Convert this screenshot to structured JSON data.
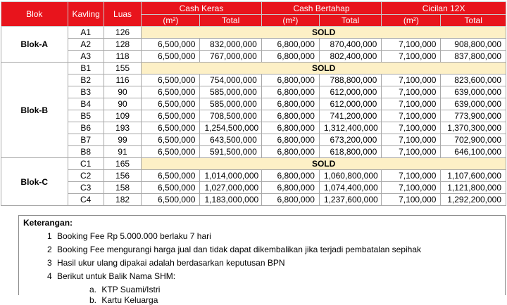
{
  "header": {
    "blok": "Blok",
    "kavling": "Kavling",
    "luas": "Luas",
    "groups": [
      "Cash Keras",
      "Cash Bertahap",
      "Cicilan 12X"
    ],
    "unit": "(m²)",
    "total": "Total"
  },
  "sold_label": "SOLD",
  "blocks": [
    {
      "name": "Blok-A",
      "rows": [
        {
          "kavling": "A1",
          "luas": "126",
          "sold": true
        },
        {
          "kavling": "A2",
          "luas": "128",
          "ck": "6,500,000",
          "ckt": "832,000,000",
          "cb": "6,800,000",
          "cbt": "870,400,000",
          "cc": "7,100,000",
          "cct": "908,800,000"
        },
        {
          "kavling": "A3",
          "luas": "118",
          "ck": "6,500,000",
          "ckt": "767,000,000",
          "cb": "6,800,000",
          "cbt": "802,400,000",
          "cc": "7,100,000",
          "cct": "837,800,000"
        }
      ]
    },
    {
      "name": "Blok-B",
      "rows": [
        {
          "kavling": "B1",
          "luas": "155",
          "sold": true
        },
        {
          "kavling": "B2",
          "luas": "116",
          "ck": "6,500,000",
          "ckt": "754,000,000",
          "cb": "6,800,000",
          "cbt": "788,800,000",
          "cc": "7,100,000",
          "cct": "823,600,000"
        },
        {
          "kavling": "B3",
          "luas": "90",
          "ck": "6,500,000",
          "ckt": "585,000,000",
          "cb": "6,800,000",
          "cbt": "612,000,000",
          "cc": "7,100,000",
          "cct": "639,000,000"
        },
        {
          "kavling": "B4",
          "luas": "90",
          "ck": "6,500,000",
          "ckt": "585,000,000",
          "cb": "6,800,000",
          "cbt": "612,000,000",
          "cc": "7,100,000",
          "cct": "639,000,000"
        },
        {
          "kavling": "B5",
          "luas": "109",
          "ck": "6,500,000",
          "ckt": "708,500,000",
          "cb": "6,800,000",
          "cbt": "741,200,000",
          "cc": "7,100,000",
          "cct": "773,900,000"
        },
        {
          "kavling": "B6",
          "luas": "193",
          "ck": "6,500,000",
          "ckt": "1,254,500,000",
          "cb": "6,800,000",
          "cbt": "1,312,400,000",
          "cc": "7,100,000",
          "cct": "1,370,300,000"
        },
        {
          "kavling": "B7",
          "luas": "99",
          "ck": "6,500,000",
          "ckt": "643,500,000",
          "cb": "6,800,000",
          "cbt": "673,200,000",
          "cc": "7,100,000",
          "cct": "702,900,000"
        },
        {
          "kavling": "B8",
          "luas": "91",
          "ck": "6,500,000",
          "ckt": "591,500,000",
          "cb": "6,800,000",
          "cbt": "618,800,000",
          "cc": "7,100,000",
          "cct": "646,100,000"
        }
      ]
    },
    {
      "name": "Blok-C",
      "rows": [
        {
          "kavling": "C1",
          "luas": "165",
          "sold": true
        },
        {
          "kavling": "C2",
          "luas": "156",
          "ck": "6,500,000",
          "ckt": "1,014,000,000",
          "cb": "6,800,000",
          "cbt": "1,060,800,000",
          "cc": "7,100,000",
          "cct": "1,107,600,000"
        },
        {
          "kavling": "C3",
          "luas": "158",
          "ck": "6,500,000",
          "ckt": "1,027,000,000",
          "cb": "6,800,000",
          "cbt": "1,074,400,000",
          "cc": "7,100,000",
          "cct": "1,121,800,000"
        },
        {
          "kavling": "C4",
          "luas": "182",
          "ck": "6,500,000",
          "ckt": "1,183,000,000",
          "cb": "6,800,000",
          "cbt": "1,237,600,000",
          "cc": "7,100,000",
          "cct": "1,292,200,000"
        }
      ]
    }
  ],
  "notes": {
    "title": "Keterangan:",
    "items": [
      {
        "n": "1",
        "text": "Booking Fee Rp 5.000.000 berlaku 7 hari"
      },
      {
        "n": "2",
        "text": "Booking Fee mengurangi harga jual dan tidak dapat dikembalikan jika terjadi pembatalan sepihak"
      },
      {
        "n": "3",
        "text": "Hasil ukur ulang dipakai adalah berdasarkan keputusan BPN"
      },
      {
        "n": "4",
        "text": "Berikut untuk Balik Nama SHM:"
      }
    ],
    "subitems": [
      {
        "n": "a.",
        "text": "KTP Suami/Istri"
      },
      {
        "n": "b.",
        "text": "Kartu Keluarga"
      }
    ]
  }
}
